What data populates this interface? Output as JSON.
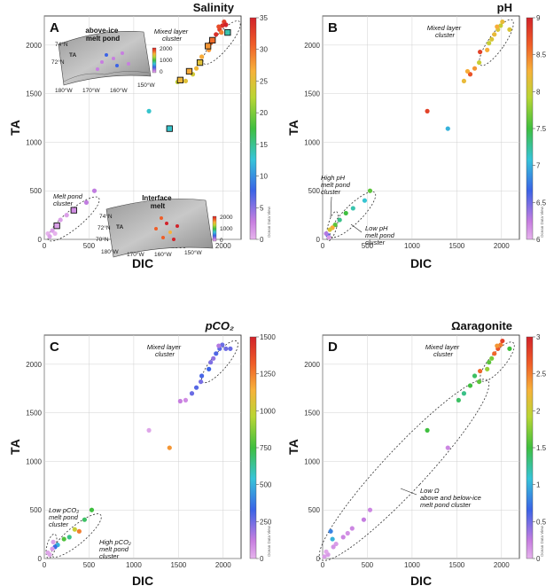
{
  "figure": {
    "watermark": "Ocean Data View"
  },
  "chart_data": [
    {
      "type": "scatter",
      "letter": "A",
      "title": "Salinity",
      "xlabel": "DIC",
      "ylabel": "TA",
      "xlim": [
        0,
        2200
      ],
      "ylim": [
        0,
        2300
      ],
      "xticks": [
        0,
        500,
        1000,
        1500,
        2000
      ],
      "yticks": [
        0,
        500,
        1000,
        1500,
        2000
      ],
      "colorbar": {
        "min": 0,
        "max": 35,
        "ticks": [
          0,
          5,
          10,
          15,
          20,
          25,
          30,
          35
        ]
      },
      "points": [
        {
          "x": 1920,
          "y": 2110,
          "c": 34
        },
        {
          "x": 1960,
          "y": 2160,
          "c": 33
        },
        {
          "x": 1990,
          "y": 2200,
          "c": 34
        },
        {
          "x": 2010,
          "y": 2240,
          "c": 33
        },
        {
          "x": 1950,
          "y": 2190,
          "c": 32
        },
        {
          "x": 1890,
          "y": 2060,
          "c": 31
        },
        {
          "x": 1860,
          "y": 2020,
          "c": 30
        },
        {
          "x": 1980,
          "y": 2130,
          "c": 29
        },
        {
          "x": 2030,
          "y": 2210,
          "c": 35
        },
        {
          "x": 1840,
          "y": 1950,
          "c": 28
        },
        {
          "x": 1760,
          "y": 1880,
          "c": 27
        },
        {
          "x": 1700,
          "y": 1760,
          "c": 26
        },
        {
          "x": 1580,
          "y": 1630,
          "c": 25
        },
        {
          "x": 1660,
          "y": 1700,
          "c": 24
        },
        {
          "x": 1490,
          "y": 1620,
          "c": 23
        },
        {
          "x": 1740,
          "y": 1820,
          "c": 25,
          "box": true
        },
        {
          "x": 1620,
          "y": 1730,
          "c": 27,
          "box": true
        },
        {
          "x": 1520,
          "y": 1640,
          "c": 26,
          "box": true
        },
        {
          "x": 1830,
          "y": 1990,
          "c": 28,
          "box": true
        },
        {
          "x": 1880,
          "y": 2050,
          "c": 30,
          "box": true
        },
        {
          "x": 2050,
          "y": 2130,
          "c": 14,
          "box": true
        },
        {
          "x": 1400,
          "y": 1140,
          "c": 13,
          "box": true
        },
        {
          "x": 1170,
          "y": 1320,
          "c": 13
        },
        {
          "x": 560,
          "y": 500,
          "c": 3
        },
        {
          "x": 470,
          "y": 380,
          "c": 3
        },
        {
          "x": 330,
          "y": 300,
          "c": 2,
          "box": true
        },
        {
          "x": 250,
          "y": 250,
          "c": 1
        },
        {
          "x": 180,
          "y": 200,
          "c": 1
        },
        {
          "x": 140,
          "y": 140,
          "c": 1,
          "box": true
        },
        {
          "x": 90,
          "y": 90,
          "c": 1
        },
        {
          "x": 40,
          "y": 60,
          "c": 0
        },
        {
          "x": 60,
          "y": 30,
          "c": 1
        },
        {
          "x": 120,
          "y": 60,
          "c": 0
        }
      ],
      "annotations": [
        {
          "lines": [
            "Mixed layer",
            "cluster"
          ]
        },
        {
          "lines": [
            "Melt pond",
            "cluster"
          ]
        }
      ],
      "insets": [
        {
          "title": "above-ice\nmelt pond",
          "title_lines": [
            "above-ice",
            "melt pond"
          ],
          "lat_labels": [
            "74°N",
            "72°N"
          ],
          "lon_labels": [
            "180°W",
            "170°W",
            "160°W",
            "150°W"
          ],
          "region_label": "TA",
          "colorbar": {
            "ticks": [
              0,
              1000,
              2000
            ]
          }
        },
        {
          "title_lines": [
            "Interface",
            "melt"
          ],
          "lat_labels": [
            "74°N",
            "72°N",
            "70°N"
          ],
          "lon_labels": [
            "180°W",
            "170°W",
            "160°W",
            "150°W"
          ],
          "region_label": "TA",
          "colorbar": {
            "ticks": [
              0,
              1000,
              2000
            ]
          }
        }
      ]
    },
    {
      "type": "scatter",
      "letter": "B",
      "title": "pH",
      "xlabel": "DIC",
      "ylabel": "TA",
      "xlim": [
        0,
        2200
      ],
      "ylim": [
        0,
        2300
      ],
      "xticks": [
        0,
        500,
        1000,
        1500,
        2000
      ],
      "yticks": [
        0,
        500,
        1000,
        1500,
        2000
      ],
      "colorbar": {
        "min": 6,
        "max": 9,
        "ticks": [
          6,
          6.5,
          7,
          7.5,
          8,
          8.5,
          9
        ]
      },
      "points": [
        {
          "x": 1920,
          "y": 2110,
          "c": 8.2
        },
        {
          "x": 1960,
          "y": 2160,
          "c": 8.1
        },
        {
          "x": 1990,
          "y": 2200,
          "c": 8.0
        },
        {
          "x": 2010,
          "y": 2240,
          "c": 8.2
        },
        {
          "x": 1950,
          "y": 2190,
          "c": 8.3
        },
        {
          "x": 1890,
          "y": 2060,
          "c": 8.1
        },
        {
          "x": 1860,
          "y": 2020,
          "c": 8.0
        },
        {
          "x": 2090,
          "y": 2160,
          "c": 8.1
        },
        {
          "x": 1840,
          "y": 1950,
          "c": 8.3
        },
        {
          "x": 1760,
          "y": 1930,
          "c": 8.8
        },
        {
          "x": 1700,
          "y": 1760,
          "c": 8.4
        },
        {
          "x": 1650,
          "y": 1700,
          "c": 8.7
        },
        {
          "x": 1580,
          "y": 1630,
          "c": 8.2
        },
        {
          "x": 1620,
          "y": 1730,
          "c": 8.3
        },
        {
          "x": 1750,
          "y": 1820,
          "c": 8.0
        },
        {
          "x": 1170,
          "y": 1320,
          "c": 8.8
        },
        {
          "x": 1400,
          "y": 1140,
          "c": 7.0
        },
        {
          "x": 530,
          "y": 500,
          "c": 7.6
        },
        {
          "x": 470,
          "y": 400,
          "c": 7.1
        },
        {
          "x": 340,
          "y": 320,
          "c": 7.2
        },
        {
          "x": 260,
          "y": 270,
          "c": 7.5
        },
        {
          "x": 190,
          "y": 200,
          "c": 7.3
        },
        {
          "x": 140,
          "y": 150,
          "c": 7.6
        },
        {
          "x": 110,
          "y": 120,
          "c": 8.3
        },
        {
          "x": 80,
          "y": 100,
          "c": 8.1
        },
        {
          "x": 60,
          "y": 40,
          "c": 6.6
        },
        {
          "x": 40,
          "y": 60,
          "c": 6.3
        },
        {
          "x": 70,
          "y": 20,
          "c": 6.1
        }
      ],
      "annotations": [
        {
          "lines": [
            "Mixed layer",
            "cluster"
          ]
        },
        {
          "lines": [
            "High pH",
            "melt pond",
            "cluster"
          ]
        },
        {
          "lines": [
            "Low pH",
            "melt pond",
            "cluster"
          ]
        }
      ]
    },
    {
      "type": "scatter",
      "letter": "C",
      "title": "pCO₂",
      "xlabel": "DIC",
      "ylabel": "TA",
      "xlim": [
        0,
        2200
      ],
      "ylim": [
        0,
        2300
      ],
      "xticks": [
        0,
        500,
        1000,
        1500,
        2000
      ],
      "yticks": [
        0,
        500,
        1000,
        1500,
        2000
      ],
      "colorbar": {
        "min": 0,
        "max": 1500,
        "ticks": [
          0,
          250,
          500,
          750,
          1000,
          1250,
          1500
        ]
      },
      "points": [
        {
          "x": 1920,
          "y": 2110,
          "c": 300
        },
        {
          "x": 1960,
          "y": 2160,
          "c": 280
        },
        {
          "x": 1990,
          "y": 2200,
          "c": 260
        },
        {
          "x": 2030,
          "y": 2160,
          "c": 250
        },
        {
          "x": 1950,
          "y": 2190,
          "c": 150
        },
        {
          "x": 1890,
          "y": 2060,
          "c": 200
        },
        {
          "x": 1860,
          "y": 2020,
          "c": 230
        },
        {
          "x": 2080,
          "y": 2160,
          "c": 260
        },
        {
          "x": 1840,
          "y": 1950,
          "c": 330
        },
        {
          "x": 1760,
          "y": 1880,
          "c": 310
        },
        {
          "x": 1700,
          "y": 1760,
          "c": 290
        },
        {
          "x": 1650,
          "y": 1700,
          "c": 260
        },
        {
          "x": 1580,
          "y": 1630,
          "c": 90
        },
        {
          "x": 1520,
          "y": 1620,
          "c": 120
        },
        {
          "x": 1750,
          "y": 1820,
          "c": 240
        },
        {
          "x": 1170,
          "y": 1320,
          "c": 30
        },
        {
          "x": 1400,
          "y": 1140,
          "c": 1200
        },
        {
          "x": 530,
          "y": 500,
          "c": 750
        },
        {
          "x": 450,
          "y": 400,
          "c": 700
        },
        {
          "x": 390,
          "y": 280,
          "c": 1250
        },
        {
          "x": 340,
          "y": 300,
          "c": 1000
        },
        {
          "x": 280,
          "y": 220,
          "c": 650
        },
        {
          "x": 220,
          "y": 200,
          "c": 780
        },
        {
          "x": 150,
          "y": 140,
          "c": 500
        },
        {
          "x": 120,
          "y": 120,
          "c": 350
        },
        {
          "x": 90,
          "y": 100,
          "c": 50
        },
        {
          "x": 60,
          "y": 40,
          "c": 20
        },
        {
          "x": 40,
          "y": 60,
          "c": 30
        },
        {
          "x": 100,
          "y": 170,
          "c": 40
        }
      ],
      "annotations": [
        {
          "lines": [
            "Mixed layer",
            "cluster"
          ]
        },
        {
          "lines": [
            "Low pCO₂",
            "melt pond",
            "cluster"
          ]
        },
        {
          "lines": [
            "High pCO₂",
            "melt pond",
            "cluster"
          ]
        }
      ]
    },
    {
      "type": "scatter",
      "letter": "D",
      "title": "Ωaragonite",
      "xlabel": "DIC",
      "ylabel": "TA",
      "xlim": [
        0,
        2200
      ],
      "ylim": [
        0,
        2300
      ],
      "xticks": [
        0,
        500,
        1000,
        1500,
        2000
      ],
      "yticks": [
        0,
        500,
        1000,
        1500,
        2000
      ],
      "colorbar": {
        "min": 0,
        "max": 3,
        "ticks": [
          0,
          0.5,
          1,
          1.5,
          2,
          2.5,
          3
        ]
      },
      "points": [
        {
          "x": 1920,
          "y": 2110,
          "c": 2.6
        },
        {
          "x": 1960,
          "y": 2160,
          "c": 2.7
        },
        {
          "x": 1990,
          "y": 2200,
          "c": 2.5
        },
        {
          "x": 2010,
          "y": 2240,
          "c": 2.8
        },
        {
          "x": 1950,
          "y": 2190,
          "c": 2.4
        },
        {
          "x": 1890,
          "y": 2060,
          "c": 1.7
        },
        {
          "x": 1860,
          "y": 2020,
          "c": 1.6
        },
        {
          "x": 2090,
          "y": 2160,
          "c": 1.5
        },
        {
          "x": 1840,
          "y": 1950,
          "c": 1.8
        },
        {
          "x": 1760,
          "y": 1930,
          "c": 2.6
        },
        {
          "x": 1700,
          "y": 1880,
          "c": 1.4
        },
        {
          "x": 1650,
          "y": 1780,
          "c": 1.5
        },
        {
          "x": 1580,
          "y": 1700,
          "c": 1.3
        },
        {
          "x": 1520,
          "y": 1630,
          "c": 1.4
        },
        {
          "x": 1750,
          "y": 1820,
          "c": 1.6
        },
        {
          "x": 1170,
          "y": 1320,
          "c": 1.5
        },
        {
          "x": 1400,
          "y": 1140,
          "c": 0.2
        },
        {
          "x": 530,
          "y": 500,
          "c": 0.2
        },
        {
          "x": 460,
          "y": 400,
          "c": 0.25
        },
        {
          "x": 330,
          "y": 310,
          "c": 0.2
        },
        {
          "x": 280,
          "y": 260,
          "c": 0.15
        },
        {
          "x": 230,
          "y": 220,
          "c": 0.2
        },
        {
          "x": 150,
          "y": 150,
          "c": 0.1
        },
        {
          "x": 120,
          "y": 120,
          "c": 0.15
        },
        {
          "x": 90,
          "y": 280,
          "c": 0.8
        },
        {
          "x": 110,
          "y": 200,
          "c": 1.0
        },
        {
          "x": 60,
          "y": 40,
          "c": 0.1
        },
        {
          "x": 40,
          "y": 70,
          "c": 0.05
        },
        {
          "x": 20,
          "y": 20,
          "c": 0.1
        }
      ],
      "annotations": [
        {
          "lines": [
            "Mixed layer",
            "cluster"
          ]
        },
        {
          "lines": [
            "Low Ω",
            "above and below-ice",
            "melt pond cluster"
          ]
        }
      ]
    }
  ]
}
